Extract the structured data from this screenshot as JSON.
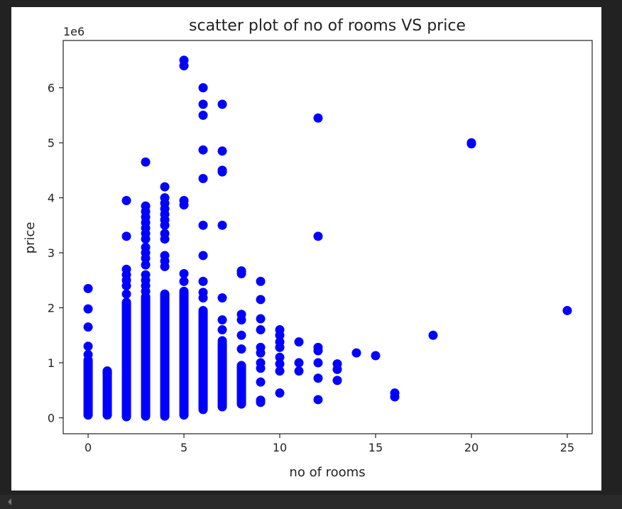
{
  "chart_data": {
    "type": "scatter",
    "title": "scatter plot of no of rooms VS price",
    "xlabel": "no of rooms",
    "ylabel": "price",
    "y_offset_label": "1e6",
    "xlim": [
      -1.3,
      26.3
    ],
    "ylim": [
      -0.29,
      6.86
    ],
    "x_ticks": [
      0,
      5,
      10,
      15,
      20,
      25
    ],
    "y_ticks": [
      0,
      1,
      2,
      3,
      4,
      5,
      6
    ],
    "grid": false,
    "marker_color": "#0000ff",
    "points_scale": "1e6",
    "columns": [
      {
        "x": 0,
        "y_min": 0.05,
        "y_max": 1.05
      },
      {
        "x": 1,
        "y_min": 0.05,
        "y_max": 0.85
      },
      {
        "x": 2,
        "y_min": 0.02,
        "y_max": 2.1
      },
      {
        "x": 3,
        "y_min": 0.03,
        "y_max": 2.2
      },
      {
        "x": 4,
        "y_min": 0.03,
        "y_max": 2.25
      },
      {
        "x": 5,
        "y_min": 0.05,
        "y_max": 2.3
      },
      {
        "x": 6,
        "y_min": 0.15,
        "y_max": 1.95
      },
      {
        "x": 7,
        "y_min": 0.2,
        "y_max": 1.35
      },
      {
        "x": 8,
        "y_min": 0.25,
        "y_max": 0.95
      }
    ],
    "points": [
      [
        0,
        2.35
      ],
      [
        0,
        1.98
      ],
      [
        0,
        1.65
      ],
      [
        0,
        1.3
      ],
      [
        0,
        1.15
      ],
      [
        1,
        0.85
      ],
      [
        1,
        0.8
      ],
      [
        2,
        3.95
      ],
      [
        2,
        3.3
      ],
      [
        2,
        2.7
      ],
      [
        2,
        2.6
      ],
      [
        2,
        2.5
      ],
      [
        2,
        2.4
      ],
      [
        2,
        2.25
      ],
      [
        3,
        4.65
      ],
      [
        3,
        3.85
      ],
      [
        3,
        3.75
      ],
      [
        3,
        3.65
      ],
      [
        3,
        3.55
      ],
      [
        3,
        3.45
      ],
      [
        3,
        3.35
      ],
      [
        3,
        3.25
      ],
      [
        3,
        3.1
      ],
      [
        3,
        3.0
      ],
      [
        3,
        2.9
      ],
      [
        3,
        2.78
      ],
      [
        3,
        2.6
      ],
      [
        3,
        2.5
      ],
      [
        3,
        2.4
      ],
      [
        3,
        2.3
      ],
      [
        4,
        4.2
      ],
      [
        4,
        4.0
      ],
      [
        4,
        3.9
      ],
      [
        4,
        3.8
      ],
      [
        4,
        3.7
      ],
      [
        4,
        3.6
      ],
      [
        4,
        3.5
      ],
      [
        4,
        3.35
      ],
      [
        4,
        3.25
      ],
      [
        4,
        2.95
      ],
      [
        4,
        2.85
      ],
      [
        4,
        2.75
      ],
      [
        5,
        6.5
      ],
      [
        5,
        6.4
      ],
      [
        5,
        3.95
      ],
      [
        5,
        3.87
      ],
      [
        5,
        2.62
      ],
      [
        5,
        2.48
      ],
      [
        6,
        6.0
      ],
      [
        6,
        5.7
      ],
      [
        6,
        5.5
      ],
      [
        6,
        4.87
      ],
      [
        6,
        4.35
      ],
      [
        6,
        3.5
      ],
      [
        6,
        2.95
      ],
      [
        6,
        2.48
      ],
      [
        6,
        2.28
      ],
      [
        6,
        2.18
      ],
      [
        7,
        5.7
      ],
      [
        7,
        4.85
      ],
      [
        7,
        4.5
      ],
      [
        7,
        4.47
      ],
      [
        7,
        3.5
      ],
      [
        7,
        2.18
      ],
      [
        7,
        1.78
      ],
      [
        7,
        1.6
      ],
      [
        7,
        1.4
      ],
      [
        8,
        2.67
      ],
      [
        8,
        2.62
      ],
      [
        8,
        1.88
      ],
      [
        8,
        1.78
      ],
      [
        8,
        1.5
      ],
      [
        8,
        1.25
      ],
      [
        9,
        2.48
      ],
      [
        9,
        2.15
      ],
      [
        9,
        1.8
      ],
      [
        9,
        1.6
      ],
      [
        9,
        1.28
      ],
      [
        9,
        1.18
      ],
      [
        9,
        1.0
      ],
      [
        9,
        0.9
      ],
      [
        9,
        0.65
      ],
      [
        9,
        0.32
      ],
      [
        9,
        0.28
      ],
      [
        10,
        1.6
      ],
      [
        10,
        1.5
      ],
      [
        10,
        1.38
      ],
      [
        10,
        1.28
      ],
      [
        10,
        1.1
      ],
      [
        10,
        0.98
      ],
      [
        10,
        0.85
      ],
      [
        10,
        0.45
      ],
      [
        11,
        1.38
      ],
      [
        11,
        1.0
      ],
      [
        11,
        0.85
      ],
      [
        12,
        5.45
      ],
      [
        12,
        3.3
      ],
      [
        12,
        1.28
      ],
      [
        12,
        1.22
      ],
      [
        12,
        1.0
      ],
      [
        12,
        0.72
      ],
      [
        12,
        0.33
      ],
      [
        13,
        0.98
      ],
      [
        13,
        0.88
      ],
      [
        13,
        0.68
      ],
      [
        14,
        1.18
      ],
      [
        15,
        1.13
      ],
      [
        16,
        0.45
      ],
      [
        16,
        0.38
      ],
      [
        18,
        1.5
      ],
      [
        20,
        5.0
      ],
      [
        20,
        4.98
      ],
      [
        25,
        1.95
      ]
    ]
  }
}
